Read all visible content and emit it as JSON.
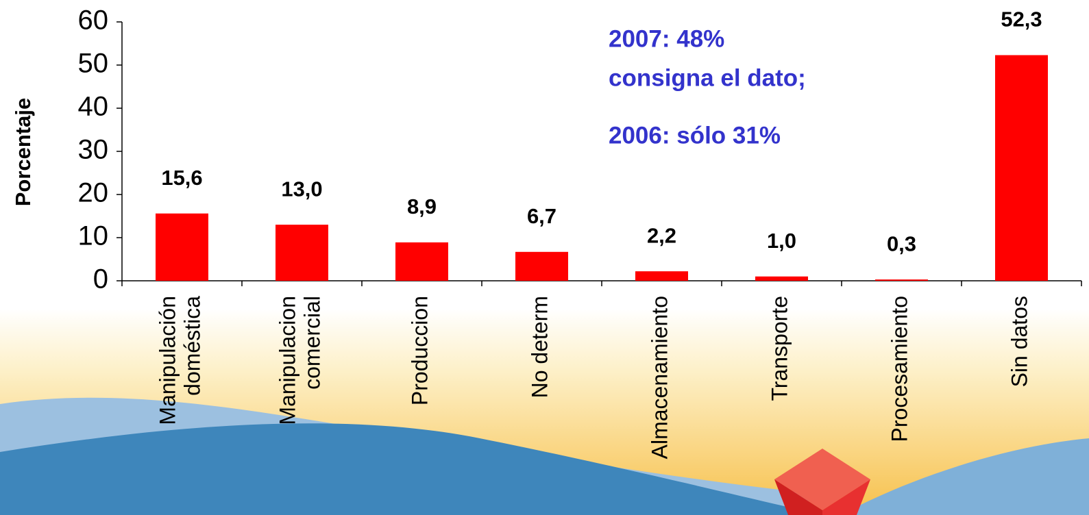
{
  "chart_data": {
    "type": "bar",
    "ylabel": "Porcentaje",
    "categories": [
      "Manipulación\ndoméstica",
      "Manipulacion\ncomercial",
      "Produccion",
      "No determ",
      "Almacenamiento",
      "Transporte",
      "Procesamiento",
      "Sin datos"
    ],
    "values": [
      15.6,
      13.0,
      8.9,
      6.7,
      2.2,
      1.0,
      0.3,
      52.3
    ],
    "value_labels": [
      "15,6",
      "13,0",
      "8,9",
      "6,7",
      "2,2",
      "1,0",
      "0,3",
      "52,3"
    ],
    "color": "#ff0000",
    "ylim": [
      0,
      60
    ],
    "yticks": [
      0,
      10,
      20,
      30,
      40,
      50,
      60
    ],
    "annotations": [
      "2007: 48%",
      "consigna el dato;",
      "2006: sólo 31%"
    ],
    "annotation_color": "#3333cc"
  }
}
